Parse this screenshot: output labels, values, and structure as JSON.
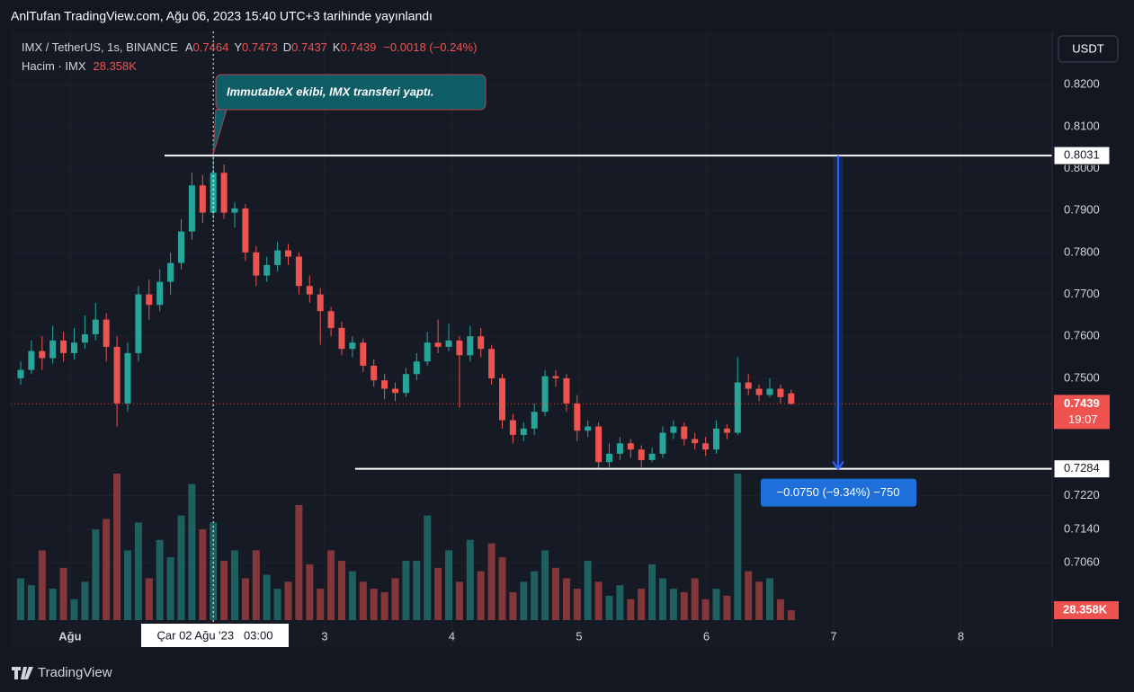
{
  "header": {
    "publisher": "AnlTufan TradingView.com, Ağu 06, 2023 15:40 UTC+3 tarihinde yayınlandı",
    "brand": "TradingView"
  },
  "chart_data": {
    "type": "candlestick",
    "symbol": "IMX / TetherUS, 1s, BINANCE",
    "ohlc_labels": [
      "A",
      "Y",
      "D",
      "K"
    ],
    "change": "−0.0018 (−0.24%)",
    "volume_title": "Hacim · IMX",
    "volume_label": "28.358K",
    "currency": "USDT",
    "countdown": "19:07",
    "crosshair_label": "Çar 02 Ağu '23   03:00",
    "annotation": "ImmutableX ekibi, IMX transferi yaptı.",
    "measure_label": "−0.0750 (−9.34%) −750",
    "hlines": [
      0.8031,
      0.7284
    ],
    "up_color": "#26a69a",
    "down_color": "#ef5350",
    "open": [
      0.75,
      0.752,
      0.7565,
      0.7548,
      0.759,
      0.756,
      0.7585,
      0.7605,
      0.764,
      0.7575,
      0.744,
      0.756,
      0.77,
      0.7675,
      0.773,
      0.7775,
      0.785,
      0.796,
      0.7895,
      0.799,
      0.7895,
      0.7905,
      0.78,
      0.7745,
      0.777,
      0.7805,
      0.779,
      0.772,
      0.77,
      0.766,
      0.762,
      0.757,
      0.7585,
      0.753,
      0.7495,
      0.7475,
      0.7465,
      0.751,
      0.754,
      0.7585,
      0.7575,
      0.759,
      0.7555,
      0.76,
      0.757,
      0.75,
      0.74,
      0.7365,
      0.738,
      0.742,
      0.7505,
      0.75,
      0.744,
      0.7375,
      0.7385,
      0.73,
      0.732,
      0.7345,
      0.733,
      0.7305,
      0.732,
      0.737,
      0.7385,
      0.7355,
      0.7345,
      0.733,
      0.738,
      0.737,
      0.749,
      0.7475,
      0.746,
      0.7475,
      0.7464
    ],
    "high": [
      0.754,
      0.759,
      0.76,
      0.7625,
      0.761,
      0.762,
      0.765,
      0.768,
      0.7655,
      0.76,
      0.7585,
      0.772,
      0.7735,
      0.776,
      0.78,
      0.788,
      0.799,
      0.7985,
      0.8031,
      0.801,
      0.792,
      0.7915,
      0.7815,
      0.779,
      0.7825,
      0.782,
      0.78,
      0.7745,
      0.7715,
      0.767,
      0.7635,
      0.76,
      0.7595,
      0.7545,
      0.751,
      0.749,
      0.7525,
      0.756,
      0.761,
      0.764,
      0.763,
      0.76,
      0.7625,
      0.762,
      0.758,
      0.751,
      0.7415,
      0.7395,
      0.744,
      0.752,
      0.752,
      0.751,
      0.746,
      0.74,
      0.7395,
      0.7345,
      0.736,
      0.7355,
      0.734,
      0.7335,
      0.7385,
      0.74,
      0.7395,
      0.737,
      0.736,
      0.74,
      0.739,
      0.755,
      0.751,
      0.7485,
      0.75,
      0.7485,
      0.7473
    ],
    "low": [
      0.7485,
      0.751,
      0.752,
      0.7535,
      0.754,
      0.7545,
      0.757,
      0.759,
      0.754,
      0.7385,
      0.742,
      0.754,
      0.764,
      0.766,
      0.77,
      0.776,
      0.783,
      0.787,
      0.788,
      0.788,
      0.786,
      0.778,
      0.772,
      0.773,
      0.7755,
      0.777,
      0.77,
      0.768,
      0.758,
      0.76,
      0.7555,
      0.755,
      0.7515,
      0.748,
      0.745,
      0.7445,
      0.7455,
      0.7495,
      0.753,
      0.756,
      0.7565,
      0.743,
      0.754,
      0.755,
      0.7485,
      0.738,
      0.7345,
      0.735,
      0.7365,
      0.741,
      0.748,
      0.742,
      0.735,
      0.736,
      0.7284,
      0.7288,
      0.7305,
      0.731,
      0.7288,
      0.73,
      0.731,
      0.7355,
      0.734,
      0.733,
      0.7315,
      0.732,
      0.7355,
      0.7365,
      0.746,
      0.7445,
      0.7455,
      0.744,
      0.7437
    ],
    "close": [
      0.752,
      0.7565,
      0.7548,
      0.759,
      0.756,
      0.7585,
      0.7605,
      0.764,
      0.7575,
      0.744,
      0.756,
      0.77,
      0.7675,
      0.773,
      0.7775,
      0.785,
      0.796,
      0.7895,
      0.799,
      0.7895,
      0.7905,
      0.78,
      0.7745,
      0.777,
      0.7805,
      0.779,
      0.772,
      0.77,
      0.766,
      0.762,
      0.757,
      0.7585,
      0.753,
      0.7495,
      0.7475,
      0.7465,
      0.751,
      0.754,
      0.7585,
      0.7575,
      0.759,
      0.7555,
      0.76,
      0.757,
      0.75,
      0.74,
      0.7365,
      0.738,
      0.742,
      0.7505,
      0.75,
      0.744,
      0.7375,
      0.7385,
      0.73,
      0.732,
      0.7345,
      0.733,
      0.7305,
      0.732,
      0.737,
      0.7385,
      0.7355,
      0.7345,
      0.733,
      0.738,
      0.737,
      0.749,
      0.7475,
      0.746,
      0.7475,
      0.7455,
      0.7439
    ],
    "volume": [
      120,
      100,
      200,
      90,
      150,
      60,
      110,
      260,
      290,
      420,
      200,
      280,
      120,
      230,
      180,
      300,
      390,
      260,
      280,
      170,
      200,
      120,
      200,
      130,
      90,
      110,
      330,
      160,
      90,
      200,
      170,
      140,
      110,
      90,
      80,
      120,
      170,
      170,
      300,
      150,
      200,
      110,
      230,
      140,
      220,
      180,
      80,
      110,
      140,
      200,
      150,
      120,
      90,
      170,
      110,
      70,
      100,
      60,
      90,
      160,
      120,
      90,
      80,
      120,
      60,
      90,
      70,
      420,
      140,
      110,
      120,
      60,
      28.358
    ],
    "ylim": [
      0.6859,
      0.8327
    ],
    "yticks": [
      {
        "value": 0.706,
        "label": "0.7060"
      },
      {
        "value": 0.714,
        "label": "0.7140"
      },
      {
        "value": 0.722,
        "label": "0.7220"
      },
      {
        "value": 0.75,
        "label": "0.7500"
      },
      {
        "value": 0.76,
        "label": "0.7600"
      },
      {
        "value": 0.77,
        "label": "0.7700"
      },
      {
        "value": 0.78,
        "label": "0.7800"
      },
      {
        "value": 0.79,
        "label": "0.7900"
      },
      {
        "value": 0.8,
        "label": "0.8000"
      },
      {
        "value": 0.81,
        "label": "0.8100"
      },
      {
        "value": 0.82,
        "label": "0.8200"
      }
    ],
    "xlim": [
      0.534,
      8.717
    ],
    "xticks": [
      {
        "value": 1,
        "label": "Ağu"
      },
      3,
      4,
      5,
      6,
      7,
      8
    ],
    "grid": true
  }
}
